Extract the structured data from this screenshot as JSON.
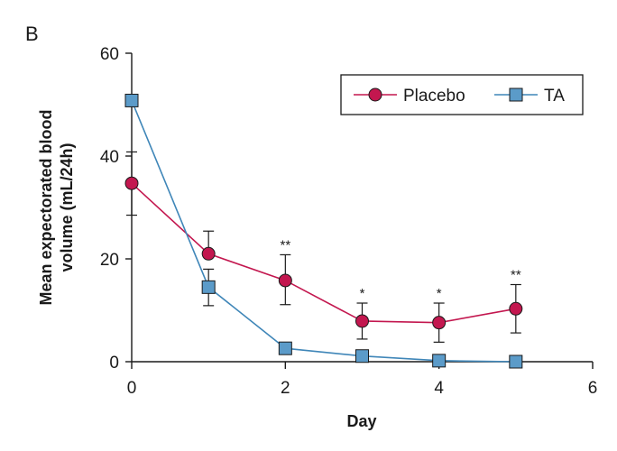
{
  "panel_label": "B",
  "colors": {
    "placebo": "#c3174f",
    "ta": "#5b9bc9",
    "ta_line": "#3f86b8",
    "axis": "#1a1a1a"
  },
  "chart_data": {
    "type": "line",
    "title": "",
    "xlabel": "Day",
    "ylabel_lines": [
      "Mean expectorated blood",
      "volume (mL/24h)"
    ],
    "xlim": [
      0,
      6
    ],
    "ylim": [
      0,
      60
    ],
    "x_ticks": [
      0,
      2,
      4,
      6
    ],
    "y_ticks": [
      0,
      20,
      40,
      60
    ],
    "legend_position": "top-right",
    "series": [
      {
        "name": "Placebo",
        "marker": "circle",
        "x": [
          0,
          1,
          2,
          3,
          4,
          5
        ],
        "y": [
          34.7,
          21.0,
          15.8,
          7.9,
          7.6,
          10.3
        ],
        "error_upper": [
          40.8,
          25.4,
          20.8,
          11.4,
          11.4,
          15.0
        ],
        "error_lower": [
          28.5,
          null,
          11.1,
          4.4,
          3.8,
          5.6
        ]
      },
      {
        "name": "TA",
        "marker": "square",
        "x": [
          0,
          1,
          2,
          3,
          4,
          5
        ],
        "y": [
          50.8,
          14.5,
          2.6,
          1.1,
          0.2,
          0.0
        ],
        "error_upper": [
          null,
          18.0,
          null,
          null,
          null,
          null
        ],
        "error_lower": [
          null,
          10.9,
          null,
          null,
          null,
          null
        ]
      }
    ],
    "annotations": [
      {
        "x": 2,
        "y": 20.8,
        "text": "**"
      },
      {
        "x": 3,
        "y": 11.4,
        "text": "*"
      },
      {
        "x": 4,
        "y": 11.4,
        "text": "*"
      },
      {
        "x": 5,
        "y": 15.0,
        "text": "**"
      }
    ]
  }
}
